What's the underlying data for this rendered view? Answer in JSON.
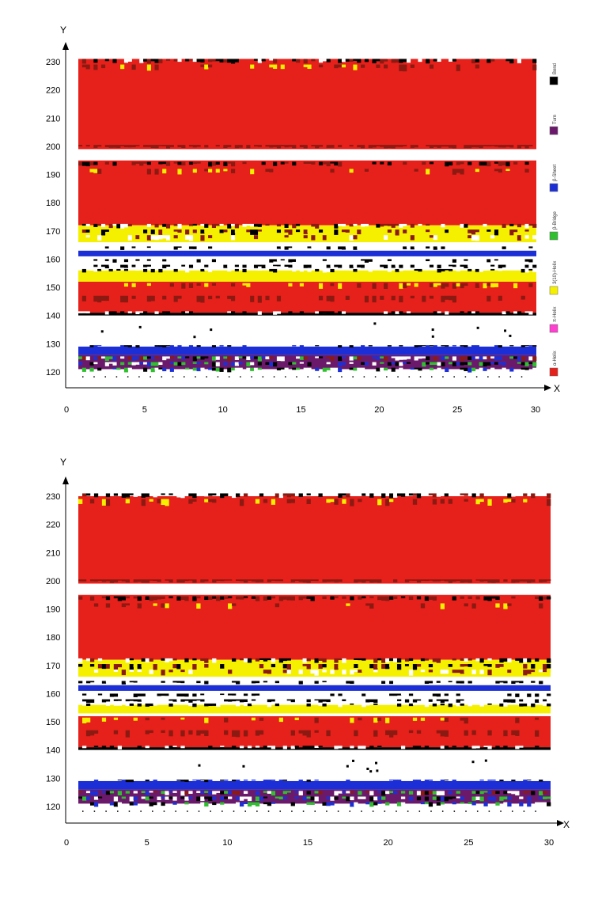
{
  "chart_data": [
    {
      "type": "heatmap",
      "panel": "top",
      "xlabel": "X",
      "ylabel": "Y",
      "xlim": [
        0,
        30
      ],
      "ylim": [
        115,
        235
      ],
      "xticks": [
        "0",
        "5",
        "10",
        "15",
        "20",
        "25",
        "30"
      ],
      "xtick_values": [
        0,
        5,
        10,
        15,
        20,
        25,
        30
      ],
      "yticks": [
        "120",
        "130",
        "140",
        "150",
        "160",
        "170",
        "180",
        "190",
        "200",
        "210",
        "220",
        "230"
      ],
      "ytick_values": [
        120,
        130,
        140,
        150,
        160,
        170,
        180,
        190,
        200,
        210,
        220,
        230
      ],
      "legend": [
        {
          "label": "Bend",
          "color": "#000000"
        },
        {
          "label": "Turn",
          "color": "#6b1a6b"
        },
        {
          "label": "β-Sheet",
          "color": "#1c2fd6"
        },
        {
          "label": "β-Bridge",
          "color": "#2fbf2f"
        },
        {
          "label": "3(10)-Helix",
          "color": "#f5f000"
        },
        {
          "label": "π-Helix",
          "color": "#ff3fd0"
        },
        {
          "label": "α-Helix",
          "color": "#e6201a"
        }
      ],
      "bands": [
        {
          "y0": 199,
          "y1": 231,
          "state": "α-Helix"
        },
        {
          "y0": 172,
          "y1": 195,
          "state": "α-Helix"
        },
        {
          "y0": 166,
          "y1": 172,
          "state": "3(10)-Helix"
        },
        {
          "y0": 161,
          "y1": 163,
          "state": "β-Sheet"
        },
        {
          "y0": 152,
          "y1": 156,
          "state": "3(10)-Helix"
        },
        {
          "y0": 141,
          "y1": 152,
          "state": "α-Helix"
        },
        {
          "y0": 140,
          "y1": 141,
          "state": "Bend"
        },
        {
          "y0": 126,
          "y1": 129,
          "state": "β-Sheet"
        },
        {
          "y0": 121,
          "y1": 126,
          "state": "Turn"
        }
      ]
    },
    {
      "type": "heatmap",
      "panel": "bottom",
      "xlabel": "X",
      "ylabel": "Y",
      "xlim": [
        0,
        30
      ],
      "ylim": [
        115,
        235
      ],
      "xticks": [
        "0",
        "5",
        "10",
        "15",
        "20",
        "25",
        "30"
      ],
      "xtick_values": [
        0,
        5,
        10,
        15,
        20,
        25,
        30
      ],
      "yticks": [
        "120",
        "130",
        "140",
        "150",
        "160",
        "170",
        "180",
        "190",
        "200",
        "210",
        "220",
        "230"
      ],
      "ytick_values": [
        120,
        130,
        140,
        150,
        160,
        170,
        180,
        190,
        200,
        210,
        220,
        230
      ],
      "bands": [
        {
          "y0": 199,
          "y1": 230,
          "state": "α-Helix"
        },
        {
          "y0": 172,
          "y1": 195,
          "state": "α-Helix"
        },
        {
          "y0": 166,
          "y1": 172,
          "state": "3(10)-Helix"
        },
        {
          "y0": 161,
          "y1": 163,
          "state": "β-Sheet"
        },
        {
          "y0": 153,
          "y1": 156,
          "state": "3(10)-Helix"
        },
        {
          "y0": 141,
          "y1": 152,
          "state": "α-Helix"
        },
        {
          "y0": 140,
          "y1": 141,
          "state": "Bend"
        },
        {
          "y0": 126,
          "y1": 129,
          "state": "β-Sheet"
        },
        {
          "y0": 121,
          "y1": 126,
          "state": "Turn"
        }
      ]
    }
  ]
}
